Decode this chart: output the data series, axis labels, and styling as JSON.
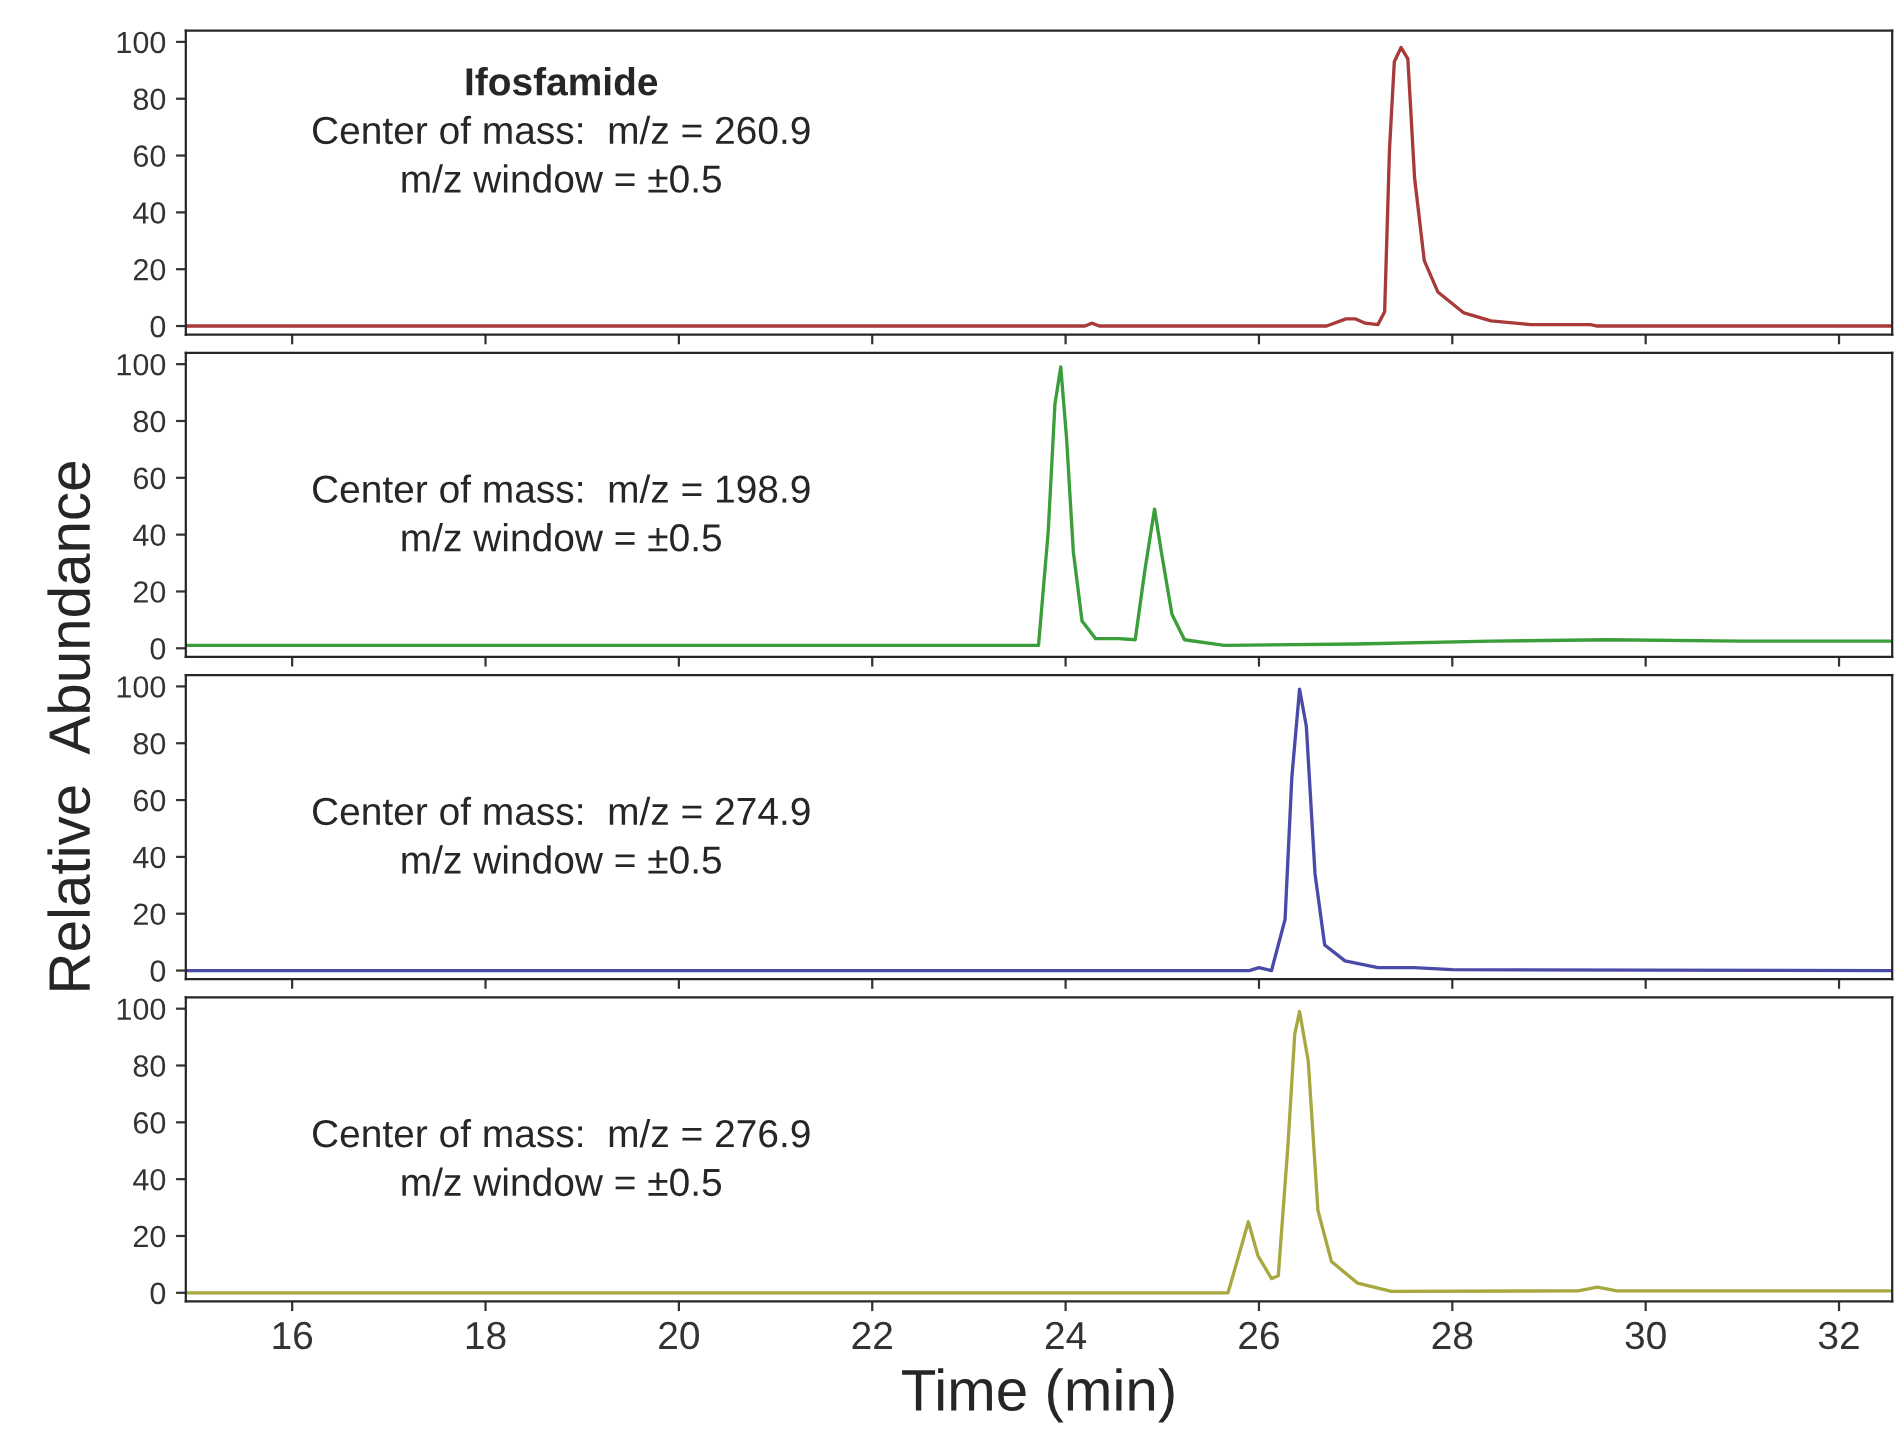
{
  "chart_data": [
    {
      "type": "line",
      "title": "Ifosfamide",
      "ylabel": "Relative  Abundance",
      "annotations": [
        "Center of mass:  m/z = 260.9",
        "m/z window = ±0.5"
      ],
      "xlim": [
        14.9,
        32.55
      ],
      "ylim": [
        -3,
        104
      ],
      "yticks": [
        0,
        20,
        40,
        60,
        80,
        100
      ],
      "xticks": [
        16,
        18,
        20,
        22,
        24,
        26,
        28,
        30,
        32
      ],
      "tick_labels": "y",
      "grid": false,
      "legend": false,
      "series": [
        {
          "color": "#a83a3a",
          "x": [
            14.9,
            24.2,
            24.27,
            24.35,
            26.7,
            26.9,
            27.0,
            27.1,
            27.23,
            27.3,
            27.35,
            27.4,
            27.47,
            27.54,
            27.61,
            27.71,
            27.85,
            28.12,
            28.4,
            28.81,
            29.43,
            29.5,
            32.55
          ],
          "values": [
            0,
            0,
            1,
            0,
            0,
            2.5,
            2.5,
            1,
            0.5,
            5,
            62,
            93,
            98,
            94,
            52,
            23,
            12,
            4.6,
            1.8,
            0.5,
            0.5,
            0,
            0
          ]
        }
      ]
    },
    {
      "type": "line",
      "annotations": [
        "Center of mass:  m/z = 198.9",
        "m/z window = ±0.5"
      ],
      "xlim": [
        14.9,
        32.55
      ],
      "ylim": [
        -3,
        104
      ],
      "yticks": [
        0,
        20,
        40,
        60,
        80,
        100
      ],
      "xticks": [
        16,
        18,
        20,
        22,
        24,
        26,
        28,
        30,
        32
      ],
      "tick_labels": "y",
      "grid": false,
      "legend": false,
      "series": [
        {
          "color": "#3a9e3a",
          "x": [
            14.9,
            20.0,
            23.72,
            23.82,
            23.89,
            23.95,
            24.01,
            24.08,
            24.17,
            24.31,
            24.55,
            24.72,
            24.82,
            24.92,
            24.99,
            25.1,
            25.23,
            25.64,
            27.0,
            28.4,
            29.6,
            31.0,
            32.55
          ],
          "values": [
            1,
            1,
            1,
            41,
            86,
            99,
            74,
            34,
            9.6,
            3.4,
            3.4,
            3,
            27.5,
            49,
            34,
            12,
            3,
            1,
            1.5,
            2.5,
            3,
            2.5,
            2.5
          ]
        }
      ]
    },
    {
      "type": "line",
      "annotations": [
        "Center of mass:  m/z = 274.9",
        "m/z window = ±0.5"
      ],
      "xlim": [
        14.9,
        32.55
      ],
      "ylim": [
        -3,
        104
      ],
      "yticks": [
        0,
        20,
        40,
        60,
        80,
        100
      ],
      "xticks": [
        16,
        18,
        20,
        22,
        24,
        26,
        28,
        30,
        32
      ],
      "tick_labels": "y",
      "grid": false,
      "legend": false,
      "series": [
        {
          "color": "#4a4aa8",
          "x": [
            14.9,
            25.9,
            26.0,
            26.13,
            26.27,
            26.34,
            26.42,
            26.49,
            26.58,
            26.68,
            26.89,
            27.23,
            27.6,
            28.0,
            32.55
          ],
          "values": [
            0,
            0,
            1,
            0,
            18,
            68,
            99,
            86,
            34,
            9,
            3.4,
            1,
            1,
            0.3,
            0
          ]
        }
      ]
    },
    {
      "type": "line",
      "xlabel": "Time (min)",
      "annotations": [
        "Center of mass:  m/z = 276.9",
        "m/z window = ±0.5"
      ],
      "xlim": [
        14.9,
        32.55
      ],
      "ylim": [
        -3,
        104
      ],
      "yticks": [
        0,
        20,
        40,
        60,
        80,
        100
      ],
      "xticks": [
        16,
        18,
        20,
        22,
        24,
        26,
        28,
        30,
        32
      ],
      "grid": false,
      "legend": false,
      "series": [
        {
          "color": "#a8a840",
          "x": [
            14.9,
            25.68,
            25.79,
            25.89,
            25.99,
            26.13,
            26.2,
            26.3,
            26.37,
            26.42,
            26.51,
            26.61,
            26.75,
            27.02,
            27.37,
            29.3,
            29.5,
            29.7,
            32.55
          ],
          "values": [
            0,
            0,
            13,
            25,
            13,
            5,
            6,
            52,
            91,
            99,
            81.5,
            29,
            11,
            3.4,
            0.5,
            0.7,
            2,
            0.7,
            0.7
          ]
        }
      ]
    }
  ]
}
